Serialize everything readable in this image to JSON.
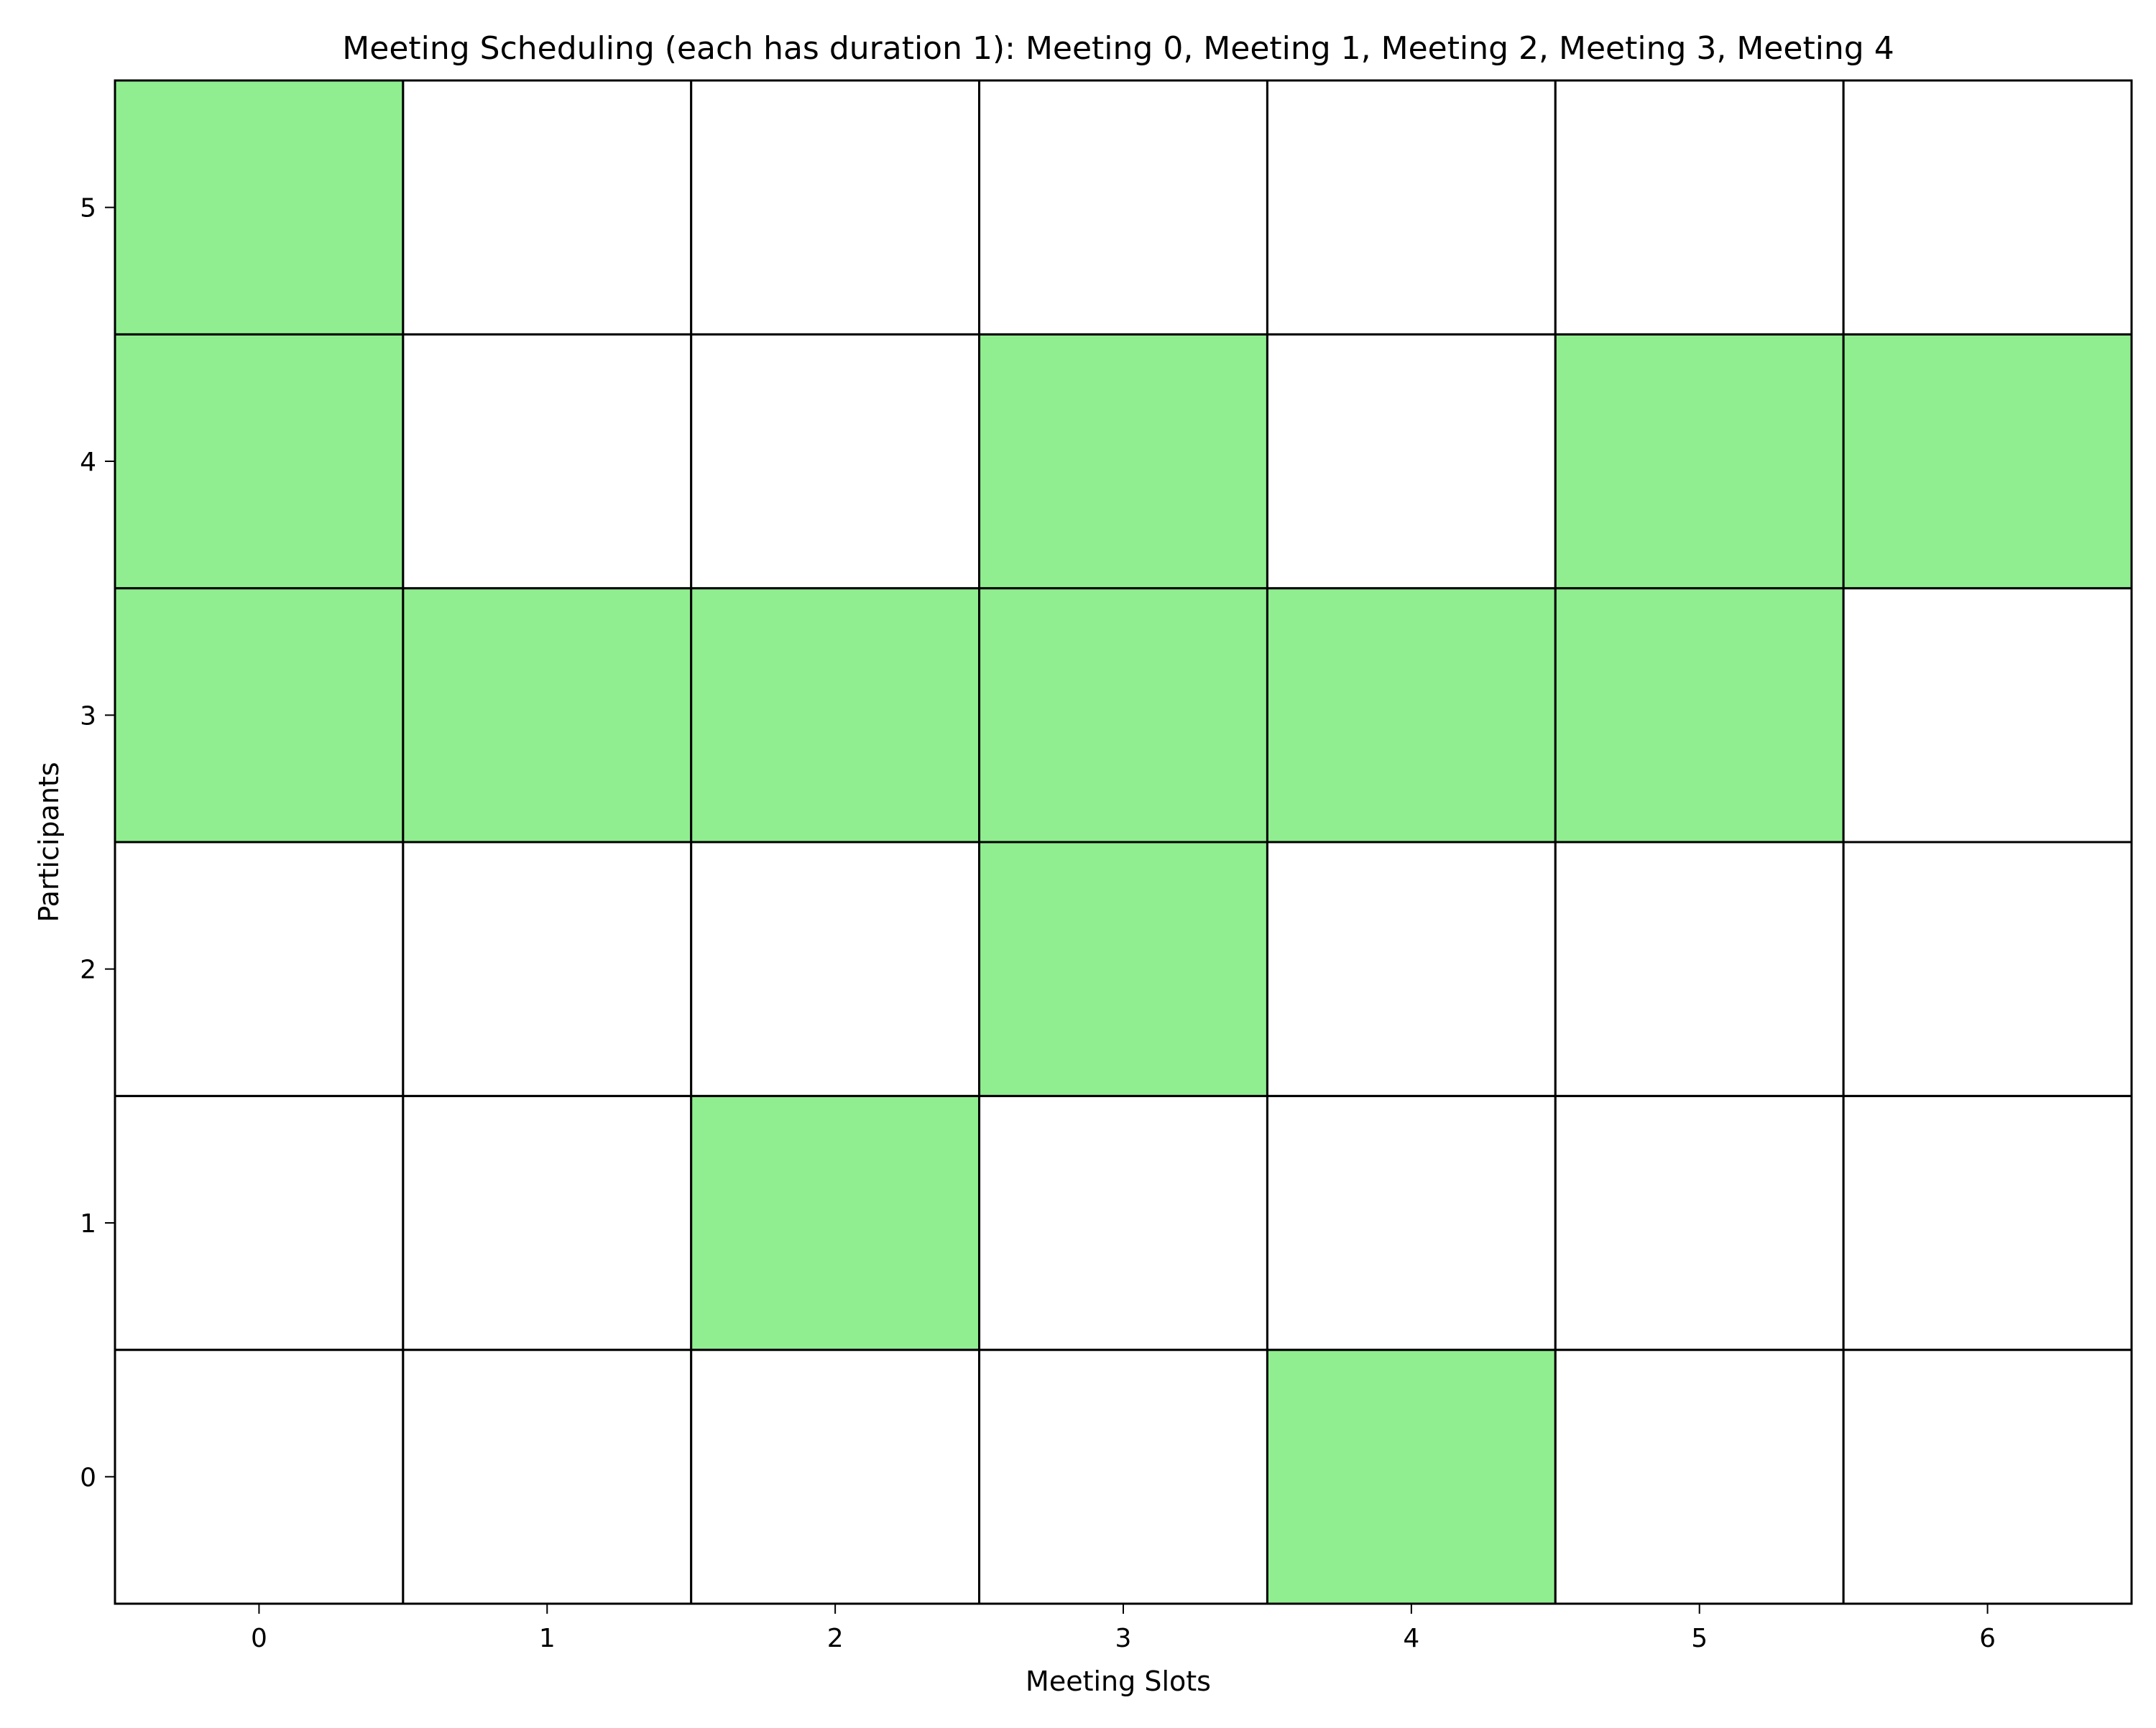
{
  "chart_data": {
    "type": "heatmap",
    "title": "Meeting Scheduling (each has duration 1): Meeting 0, Meeting 1, Meeting 2, Meeting 3, Meeting 4",
    "xlabel": "Meeting Slots",
    "ylabel": "Participants",
    "x_ticks": [
      "0",
      "1",
      "2",
      "3",
      "4",
      "5",
      "6"
    ],
    "y_ticks": [
      "0",
      "1",
      "2",
      "3",
      "4",
      "5"
    ],
    "xlim": [
      -0.5,
      6.5
    ],
    "ylim": [
      -0.5,
      5.5
    ],
    "grid": true,
    "legend": "none",
    "colors": {
      "available": "#90ee90",
      "unavailable": "#ffffff",
      "border": "#000000"
    },
    "available_slots": [
      {
        "participant": 0,
        "slots": [
          4
        ]
      },
      {
        "participant": 1,
        "slots": [
          2
        ]
      },
      {
        "participant": 2,
        "slots": [
          3
        ]
      },
      {
        "participant": 3,
        "slots": [
          0,
          1,
          2,
          3,
          4,
          5
        ]
      },
      {
        "participant": 4,
        "slots": [
          0,
          3,
          5,
          6
        ]
      },
      {
        "participant": 5,
        "slots": [
          0
        ]
      }
    ]
  }
}
